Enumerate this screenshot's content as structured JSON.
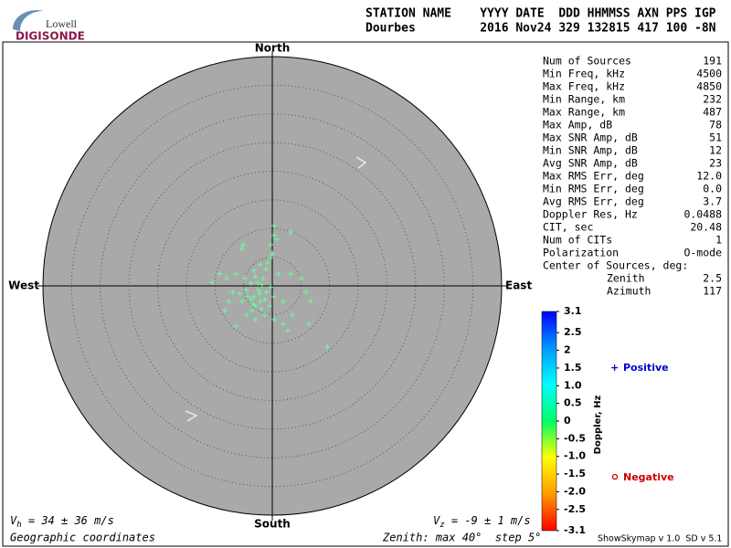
{
  "logo": {
    "top": "Lowell",
    "bottom": "DIGISONDE"
  },
  "header": {
    "row1": "STATION NAME    YYYY DATE  DDD HHMMSS AXN PPS IGP",
    "row2": "Dourbes         2016 Nov24 329 132815 417 100 -8N"
  },
  "stats": [
    [
      "Num of Sources",
      "191"
    ],
    [
      "Min Freq, kHz",
      "4500"
    ],
    [
      "Max Freq, kHz",
      "4850"
    ],
    [
      "Min Range, km",
      "232"
    ],
    [
      "Max Range, km",
      "487"
    ],
    [
      "Max Amp, dB",
      "78"
    ],
    [
      "Max SNR Amp, dB",
      "51"
    ],
    [
      "Min SNR Amp, dB",
      "12"
    ],
    [
      "Avg SNR Amp, dB",
      "23"
    ],
    [
      "Max RMS Err, deg",
      "12.0"
    ],
    [
      "Min RMS Err, deg",
      "0.0"
    ],
    [
      "Avg RMS Err, deg",
      "3.7"
    ],
    [
      "Doppler Res, Hz",
      "0.0488"
    ],
    [
      "CIT, sec",
      "20.48"
    ],
    [
      "Num of CITs",
      "1"
    ],
    [
      "Polarization",
      "O-mode"
    ],
    [
      "Center of Sources, deg:"
    ],
    [
      "Zenith",
      "2.5"
    ],
    [
      "Azimuth",
      "117"
    ]
  ],
  "chart_data": [
    {
      "type": "skymap",
      "labels": {
        "north": "North",
        "south": "South",
        "east": "East",
        "west": "West"
      },
      "x": [
        0.3,
        3.2,
        0.3,
        -5.1,
        -5.3,
        -0.3,
        0,
        -0.8,
        -2.1,
        -1.1,
        -3.2,
        -10.5,
        -9.2,
        -8.0,
        -6.4,
        -4.8,
        -3.7,
        -2.5,
        -1.6,
        1.1,
        3.2,
        5.1,
        5.9,
        6.7,
        1.9,
        3.5,
        6.4,
        2.7,
        1.9,
        0.3,
        -1.3,
        -2.9,
        -4.5,
        -6.4,
        -8.3,
        -7.6,
        -5.7,
        -4.5,
        -3.2,
        -2.1,
        -1.0,
        0.3,
        -2.4,
        -3.3,
        -1.9,
        9.6,
        0.8,
        -0.3,
        -2.9,
        -3.7,
        -1.3,
        -0.5,
        -5.3,
        -6.9,
        -3.5,
        -2.2,
        -4.3,
        -1.8,
        -0.3,
        -2.9
      ],
      "y": [
        10.5,
        9.4,
        8.8,
        7.2,
        6.5,
        7.2,
        5.6,
        4.0,
        3.7,
        2.9,
        2.7,
        0.6,
        2.1,
        1.3,
        2.1,
        1.3,
        0.5,
        0.5,
        1.3,
        2.1,
        2.1,
        1.3,
        -1.1,
        -2.7,
        -2.7,
        -5.1,
        -6.7,
        -7.8,
        -6.7,
        -5.9,
        -5.1,
        -5.9,
        -5.1,
        -7.0,
        -4.3,
        -2.7,
        -1.4,
        -0.8,
        -1.9,
        -2.7,
        -1.1,
        -1.9,
        -0.8,
        -3.2,
        -4.0,
        -10.7,
        8.1,
        4.9,
        -3.5,
        -2.4,
        -2.4,
        -3.5,
        -2.7,
        -1.1,
        -4.3,
        -1.4,
        -1.9,
        0.2,
        -0.2,
        1.6
      ],
      "color": "#66ff99",
      "xlim": [
        -40,
        40
      ],
      "ylim": [
        -40,
        40
      ],
      "rings": [
        5,
        10,
        15,
        20,
        25,
        30,
        35
      ]
    },
    {
      "type": "colorbar",
      "title": "Doppler, Hz",
      "ylim": [
        -3.1,
        3.1
      ],
      "yticks": [
        3.1,
        2.5,
        2,
        1.5,
        {
          "value": 1,
          "label": "1.0"
        },
        0.5,
        0,
        -0.5,
        {
          "value": -1,
          "label": "-1.0"
        },
        -1.5,
        {
          "value": -2,
          "label": "-2.0"
        },
        -2.5,
        -3.1
      ],
      "colors": [
        "#ff0000",
        "#ff9900",
        "#ffff00",
        "#00ff66",
        "#00ffff",
        "#0099ff",
        "#0000ff"
      ],
      "legend": {
        "positive": "Positive",
        "positive_color": "#0000cc",
        "negative": "Negative",
        "negative_color": "#cc0000"
      }
    }
  ],
  "footer": {
    "vh_symbol": "V",
    "vh_sub": "h",
    "vh_text": " = 34 ± 36 m/s",
    "vz_symbol": "V",
    "vz_sub": "z",
    "vz_text": " = -9 ± 1 m/s",
    "coords": "Geographic coordinates",
    "zenith": "Zenith: max 40°  step 5°",
    "version": "ShowSkymap v 1.0  SD v 5.1"
  }
}
